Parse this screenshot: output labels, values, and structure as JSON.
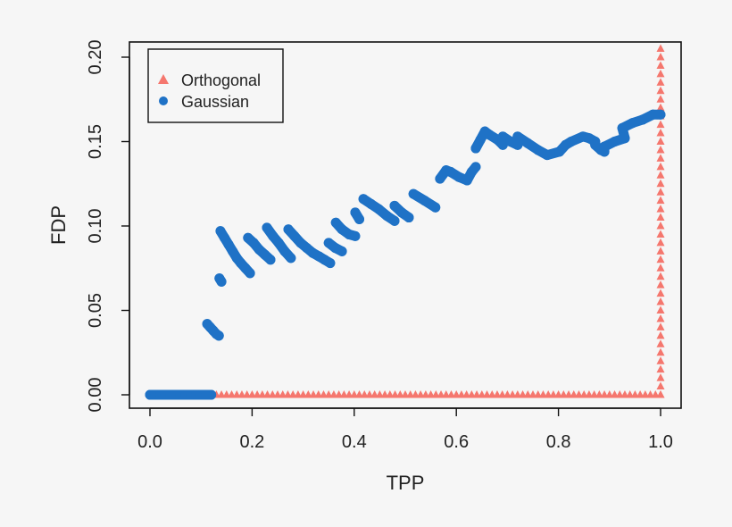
{
  "chart_data": {
    "type": "scatter",
    "xlabel": "TPP",
    "ylabel": "FDP",
    "xlim": [
      0,
      1
    ],
    "ylim": [
      0,
      0.2
    ],
    "x_ticks": [
      "0.0",
      "0.2",
      "0.4",
      "0.6",
      "0.8",
      "1.0"
    ],
    "y_ticks": [
      "0.00",
      "0.05",
      "0.10",
      "0.15",
      "0.20"
    ],
    "grid": false,
    "legend_position": "top-left",
    "series": [
      {
        "name": "Orthogonal",
        "marker": "triangle",
        "color": "#F5776E",
        "horizontal_run": {
          "x_from": 0,
          "x_to": 1,
          "x_step": 0.01,
          "y": 0
        },
        "vertical_run": {
          "x": 1,
          "y_from": 0,
          "y_to": 0.205,
          "y_step": 0.005
        }
      },
      {
        "name": "Gaussian",
        "marker": "circle",
        "color": "#1F72C6",
        "points": [
          [
            0,
            0
          ],
          [
            0.01,
            0
          ],
          [
            0.02,
            0
          ],
          [
            0.03,
            0
          ],
          [
            0.04,
            0
          ],
          [
            0.05,
            0
          ],
          [
            0.06,
            0
          ],
          [
            0.07,
            0
          ],
          [
            0.08,
            0
          ],
          [
            0.09,
            0
          ],
          [
            0.1,
            0
          ],
          [
            0.11,
            0
          ],
          [
            0.12,
            0
          ],
          [
            0.112,
            0.042
          ],
          [
            0.118,
            0.04
          ],
          [
            0.124,
            0.038
          ],
          [
            0.13,
            0.036
          ],
          [
            0.135,
            0.035
          ],
          [
            0.136,
            0.069
          ],
          [
            0.14,
            0.067
          ],
          [
            0.138,
            0.097
          ],
          [
            0.146,
            0.093
          ],
          [
            0.154,
            0.089
          ],
          [
            0.162,
            0.085
          ],
          [
            0.17,
            0.081
          ],
          [
            0.178,
            0.078
          ],
          [
            0.187,
            0.075
          ],
          [
            0.196,
            0.072
          ],
          [
            0.192,
            0.093
          ],
          [
            0.203,
            0.09
          ],
          [
            0.214,
            0.086
          ],
          [
            0.225,
            0.083
          ],
          [
            0.236,
            0.08
          ],
          [
            0.229,
            0.099
          ],
          [
            0.241,
            0.094
          ],
          [
            0.252,
            0.09
          ],
          [
            0.264,
            0.085
          ],
          [
            0.276,
            0.081
          ],
          [
            0.271,
            0.098
          ],
          [
            0.283,
            0.094
          ],
          [
            0.295,
            0.09
          ],
          [
            0.307,
            0.087
          ],
          [
            0.319,
            0.084
          ],
          [
            0.331,
            0.082
          ],
          [
            0.342,
            0.08
          ],
          [
            0.353,
            0.078
          ],
          [
            0.35,
            0.09
          ],
          [
            0.363,
            0.087
          ],
          [
            0.376,
            0.085
          ],
          [
            0.364,
            0.102
          ],
          [
            0.376,
            0.098
          ],
          [
            0.39,
            0.095
          ],
          [
            0.402,
            0.094
          ],
          [
            0.402,
            0.108
          ],
          [
            0.41,
            0.104
          ],
          [
            0.418,
            0.116
          ],
          [
            0.433,
            0.113
          ],
          [
            0.448,
            0.11
          ],
          [
            0.464,
            0.106
          ],
          [
            0.479,
            0.103
          ],
          [
            0.479,
            0.112
          ],
          [
            0.493,
            0.108
          ],
          [
            0.507,
            0.105
          ],
          [
            0.516,
            0.119
          ],
          [
            0.538,
            0.115
          ],
          [
            0.559,
            0.111
          ],
          [
            0.568,
            0.128
          ],
          [
            0.58,
            0.133
          ],
          [
            0.589,
            0.132
          ],
          [
            0.605,
            0.129
          ],
          [
            0.621,
            0.127
          ],
          [
            0.63,
            0.132
          ],
          [
            0.638,
            0.135
          ],
          [
            0.638,
            0.146
          ],
          [
            0.647,
            0.151
          ],
          [
            0.656,
            0.156
          ],
          [
            0.665,
            0.154
          ],
          [
            0.681,
            0.151
          ],
          [
            0.691,
            0.148
          ],
          [
            0.691,
            0.153
          ],
          [
            0.706,
            0.15
          ],
          [
            0.72,
            0.148
          ],
          [
            0.72,
            0.153
          ],
          [
            0.74,
            0.149
          ],
          [
            0.76,
            0.145
          ],
          [
            0.778,
            0.142
          ],
          [
            0.802,
            0.144
          ],
          [
            0.814,
            0.148
          ],
          [
            0.825,
            0.15
          ],
          [
            0.848,
            0.153
          ],
          [
            0.86,
            0.152
          ],
          [
            0.872,
            0.15
          ],
          [
            0.872,
            0.148
          ],
          [
            0.883,
            0.145
          ],
          [
            0.89,
            0.144
          ],
          [
            0.89,
            0.147
          ],
          [
            0.91,
            0.15
          ],
          [
            0.93,
            0.152
          ],
          [
            0.925,
            0.158
          ],
          [
            0.945,
            0.161
          ],
          [
            0.965,
            0.163
          ],
          [
            0.985,
            0.166
          ],
          [
            1.0,
            0.166
          ]
        ]
      }
    ]
  }
}
